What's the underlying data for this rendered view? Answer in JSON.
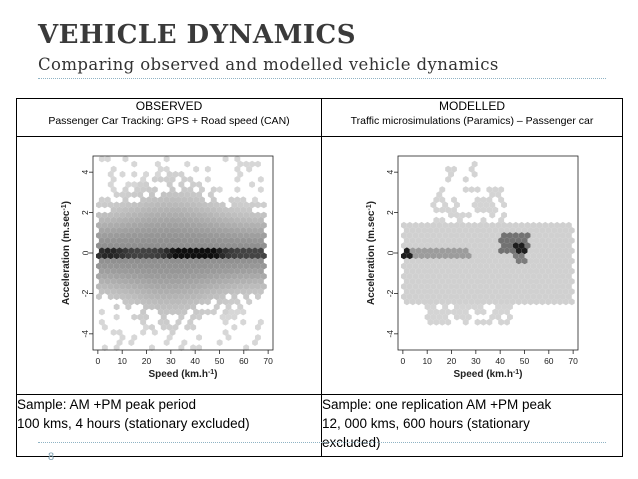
{
  "slide": {
    "title": "VEHICLE DYNAMICS",
    "subtitle": "Comparing observed and modelled vehicle dynamics",
    "page_number": "8"
  },
  "columns": [
    {
      "heading": "OBSERVED",
      "description": "Passenger Car Tracking: GPS + Road speed (CAN)",
      "sample_line1": "Sample:  AM +PM peak period",
      "sample_line2": "100 kms, 4 hours  (stationary excluded)"
    },
    {
      "heading": "MODELLED",
      "description": "Traffic microsimulations (Paramics) – Passenger car",
      "sample_line1": "Sample:  one replication AM +PM peak",
      "sample_line2": "12, 000 kms, 600 hours (stationary",
      "sample_line3": "excluded)"
    }
  ],
  "chart_data": [
    {
      "type": "heatmap",
      "xlabel": "Speed (km.h",
      "xlabel_sup": "-1",
      "xlabel_end": ")",
      "ylabel": "Acceleration (m.sec",
      "ylabel_sup": "-1",
      "ylabel_end": ")",
      "xticks": [
        "0",
        "10",
        "20",
        "30",
        "40",
        "50",
        "60",
        "70"
      ],
      "yticks": [
        "-4",
        "-2",
        "0",
        "2",
        "4"
      ],
      "xlim": [
        -2,
        72
      ],
      "ylim": [
        -4.8,
        4.8
      ]
    },
    {
      "type": "heatmap",
      "xlabel": "Speed (km.h",
      "xlabel_sup": "-1",
      "xlabel_end": ")",
      "ylabel": "Acceleration (m.sec",
      "ylabel_sup": "-1",
      "ylabel_end": ")",
      "xticks": [
        "0",
        "10",
        "20",
        "30",
        "40",
        "50",
        "60",
        "70"
      ],
      "yticks": [
        "-4",
        "-2",
        "0",
        "2",
        "4"
      ],
      "xlim": [
        -2,
        72
      ],
      "ylim": [
        -4.8,
        4.8
      ]
    }
  ]
}
